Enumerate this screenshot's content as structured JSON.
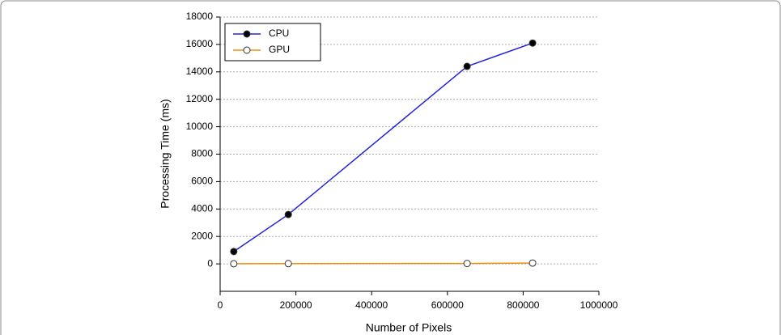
{
  "chart_data": {
    "type": "line",
    "x_label": "Number of Pixels",
    "y_label": "Processing Time (ms)",
    "x": [
      36000,
      180000,
      652000,
      825000
    ],
    "series": [
      {
        "name": "CPU",
        "color": "#2323d8",
        "marker_fill": "#000000",
        "values": [
          900,
          3600,
          14400,
          16100
        ]
      },
      {
        "name": "GPU",
        "color": "#f0900a",
        "marker_fill": "#ffffff",
        "values": [
          10,
          20,
          30,
          60
        ]
      }
    ],
    "xlim": [
      0,
      1000000
    ],
    "xticks": [
      0,
      200000,
      400000,
      600000,
      800000,
      1000000
    ],
    "ylim": [
      -2000,
      18000
    ],
    "yticks": [
      0,
      2000,
      4000,
      6000,
      8000,
      10000,
      12000,
      14000,
      16000,
      18000
    ],
    "grid": true,
    "legend": "upper-left"
  }
}
